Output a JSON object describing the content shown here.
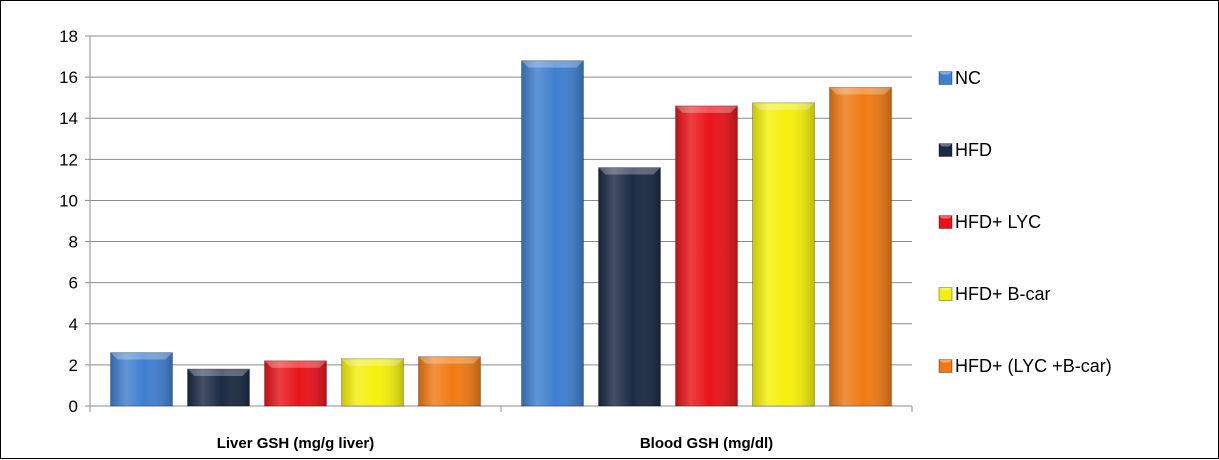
{
  "chart_data": {
    "type": "bar",
    "categories": [
      "Liver GSH (mg/g liver)",
      "Blood GSH (mg/dl)"
    ],
    "series": [
      {
        "name": "NC",
        "values": [
          2.6,
          16.8
        ],
        "color": "#3f7fcf"
      },
      {
        "name": "HFD",
        "values": [
          1.8,
          11.6
        ],
        "color": "#1b2a44"
      },
      {
        "name": "HFD+ LYC",
        "values": [
          2.2,
          14.6
        ],
        "color": "#e8141a"
      },
      {
        "name": "HFD+ B-car",
        "values": [
          2.3,
          14.75
        ],
        "color": "#f5f00a"
      },
      {
        "name": "HFD+ (LYC +B-car)",
        "values": [
          2.4,
          15.5
        ],
        "color": "#f07a12"
      }
    ],
    "ylim": [
      0,
      18
    ],
    "yticks": [
      0,
      2,
      4,
      6,
      8,
      10,
      12,
      14,
      16,
      18
    ],
    "grid": true,
    "legend_position": "right"
  }
}
